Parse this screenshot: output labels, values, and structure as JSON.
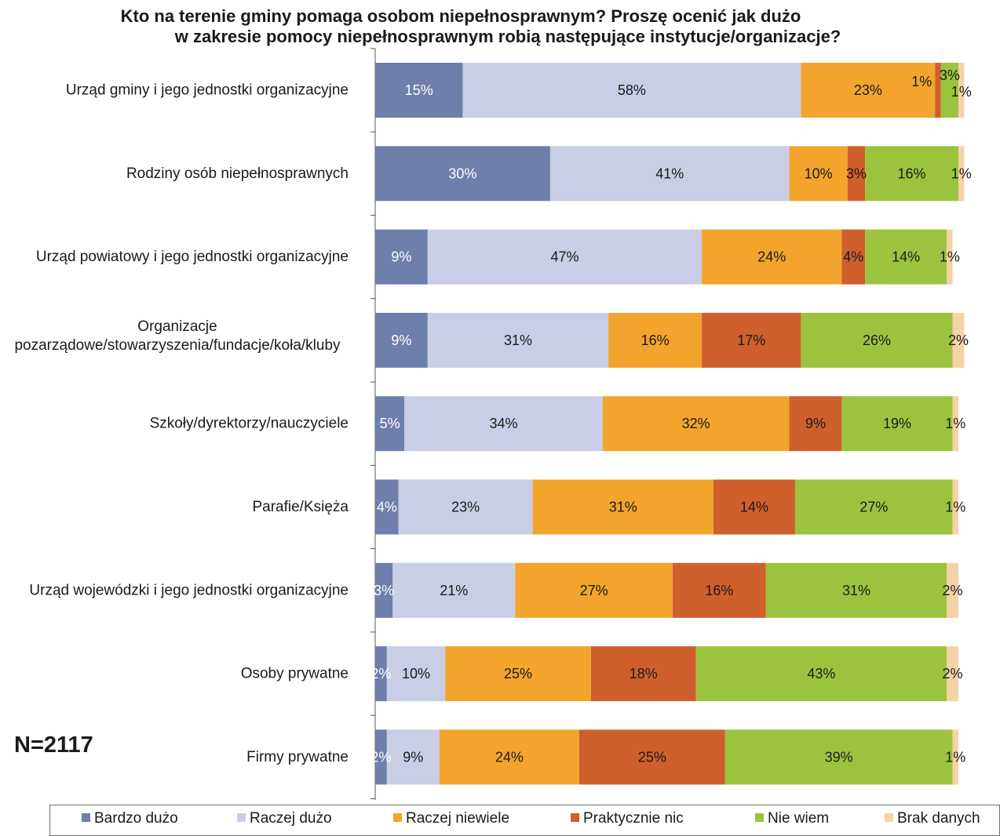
{
  "title": {
    "line1": "Kto na terenie gminy pomaga osobom niepełnosprawnym? Proszę ocenić jak dużo",
    "line2": "w zakresie pomocy niepełnosprawnym robią następujące instytucje/organizacje?"
  },
  "sample_size": "N=2117",
  "chart_data": {
    "type": "bar",
    "orientation": "horizontal",
    "stacked": true,
    "categories": [
      "Urząd gminy i jego jednostki  organizacyjne",
      "Rodziny osób niepełnosprawnych",
      "Urząd powiatowy i jego jednostki organizacyjne",
      [
        "Organizacje",
        "pozarządowe/stowarzyszenia/fundacje/koła/kluby"
      ],
      "Szkoły/dyrektorzy/nauczyciele",
      "Parafie/Księża",
      "Urząd wojewódzki i jego jednostki organizacyjne",
      "Osoby prywatne",
      "Firmy prywatne"
    ],
    "series": [
      {
        "name": "Bardzo dużo",
        "color": "#6f7fac",
        "label_color": "#ffffff",
        "values": [
          15,
          30,
          9,
          9,
          5,
          4,
          3,
          2,
          2
        ]
      },
      {
        "name": "Raczej dużo",
        "color": "#c9cde6",
        "label_color": "#1a1a1a",
        "values": [
          58,
          41,
          47,
          31,
          34,
          23,
          21,
          10,
          9
        ]
      },
      {
        "name": "Raczej niewiele",
        "color": "#f2a42d",
        "label_color": "#1a1a1a",
        "values": [
          23,
          10,
          24,
          16,
          32,
          31,
          27,
          25,
          24
        ]
      },
      {
        "name": "Praktycznie nic",
        "color": "#cf5f2c",
        "label_color": "#1a1a1a",
        "values": [
          1,
          3,
          4,
          17,
          9,
          14,
          16,
          18,
          25
        ]
      },
      {
        "name": "Nie wiem",
        "color": "#9cc33e",
        "label_color": "#1a1a1a",
        "values": [
          3,
          16,
          14,
          26,
          19,
          27,
          31,
          43,
          39
        ]
      },
      {
        "name": "Brak danych",
        "color": "#f5d2a7",
        "label_color": "#1a1a1a",
        "values": [
          1,
          1,
          1,
          2,
          1,
          1,
          2,
          2,
          1
        ]
      }
    ],
    "value_suffix": "%",
    "xlim": [
      0,
      100
    ],
    "legend_position": "bottom"
  }
}
